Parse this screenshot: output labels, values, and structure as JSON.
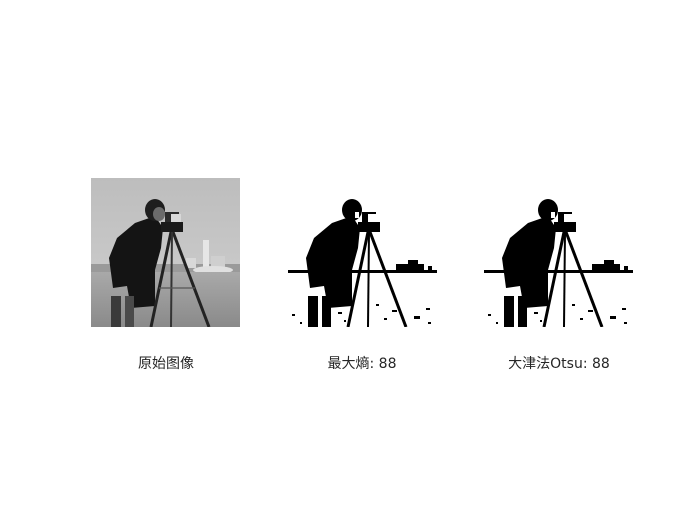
{
  "figure": {
    "panels": [
      {
        "caption": "原始图像",
        "kind": "grayscale"
      },
      {
        "caption": "最大熵: 88",
        "kind": "binary"
      },
      {
        "caption": "大津法Otsu: 88",
        "kind": "binary"
      }
    ]
  }
}
